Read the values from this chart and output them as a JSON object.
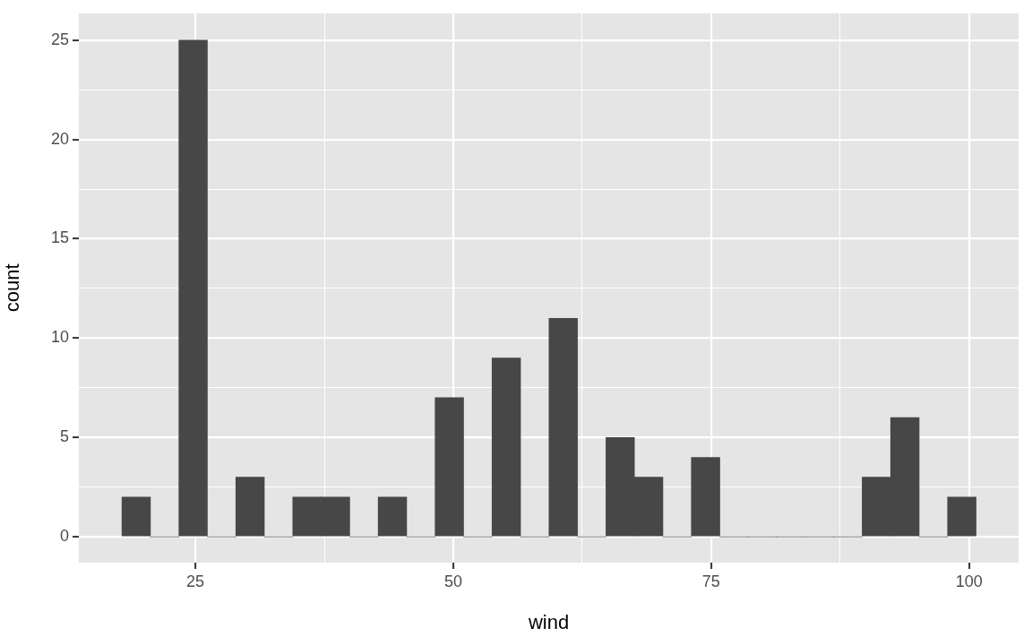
{
  "chart_data": {
    "type": "histogram",
    "xlabel": "wind",
    "ylabel": "count",
    "color": "#474747",
    "bins": [
      17.88,
      20.64,
      23.4,
      26.16,
      28.92,
      31.68,
      34.44,
      37.2,
      39.96,
      42.72,
      45.48,
      48.24,
      51,
      53.76,
      56.52,
      59.28,
      62.04,
      64.8,
      67.56,
      70.32,
      73.08,
      75.84,
      78.6,
      81.36,
      84.12,
      86.88,
      89.64,
      92.4,
      95.16,
      97.92,
      100.68
    ],
    "values": [
      2,
      0,
      25,
      0,
      3,
      0,
      2,
      2,
      0,
      2,
      0,
      7,
      0,
      9,
      0,
      11,
      0,
      5,
      3,
      0,
      4,
      0,
      0,
      0,
      0,
      0,
      3,
      6,
      0,
      2
    ],
    "xlim": [
      13.7,
      104.8
    ],
    "ylim": [
      -1.3,
      26.35
    ],
    "xticks": [
      25,
      {
        "value": 37.5,
        "label": null
      },
      50,
      {
        "value": 62.5,
        "label": null
      },
      75,
      {
        "value": 87.5,
        "label": null
      },
      100
    ],
    "yticks": [
      0,
      {
        "value": 2.5,
        "label": null
      },
      5,
      {
        "value": 7.5,
        "label": null
      },
      10,
      {
        "value": 12.5,
        "label": null
      },
      15,
      {
        "value": 17.5,
        "label": null
      },
      20,
      {
        "value": 22.5,
        "label": null
      },
      25
    ],
    "grid": true
  }
}
